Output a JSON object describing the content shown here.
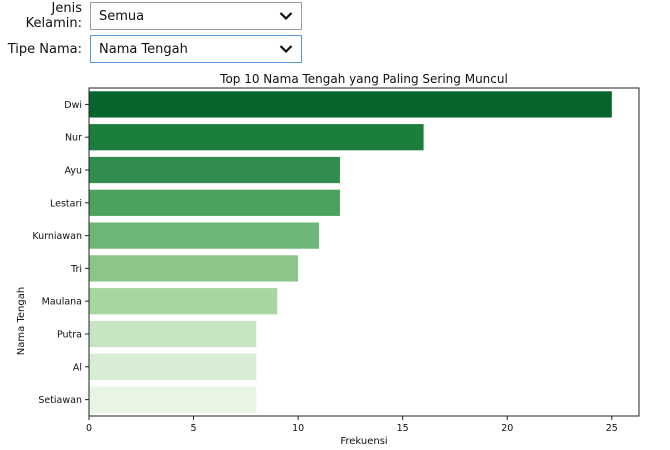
{
  "filters": {
    "gender": {
      "label": "Jenis Kelamin:",
      "value": "Semua"
    },
    "name_type": {
      "label": "Tipe Nama:",
      "value": "Nama Tengah"
    }
  },
  "chart_data": {
    "type": "bar",
    "orientation": "horizontal",
    "title": "Top 10 Nama Tengah yang Paling Sering Muncul",
    "xlabel": "Frekuensi",
    "ylabel": "Nama Tengah",
    "xlim": [
      0,
      26.3
    ],
    "xticks": [
      0,
      5,
      10,
      15,
      20,
      25
    ],
    "grid": false,
    "categories": [
      "Dwi",
      "Nur",
      "Ayu",
      "Lestari",
      "Kurniawan",
      "Tri",
      "Maulana",
      "Putra",
      "Al",
      "Setiawan"
    ],
    "values": [
      25,
      16,
      12,
      12,
      11,
      10,
      9,
      8,
      8,
      8
    ],
    "colors": [
      "#05652d",
      "#1c7e3d",
      "#338c4f",
      "#4ba25f",
      "#6db677",
      "#8bc588",
      "#a8d6a0",
      "#c6e6c1",
      "#d8edd4",
      "#e8f5e5"
    ]
  }
}
